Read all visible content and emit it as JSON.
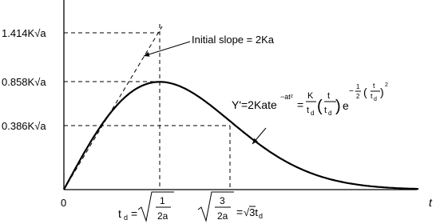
{
  "y_labels": [
    "1.414K√a",
    "0.858K√a",
    "0.386K√a"
  ],
  "origin_label": "0",
  "axis_label": "t",
  "annotation": "Initial slope = 2Ka",
  "formula": [
    "Y'=2Kate",
    "−at²",
    "=",
    "K",
    "t",
    "d",
    "(",
    "t",
    "t",
    "d",
    ")",
    "e",
    "−",
    "1",
    "2",
    "(",
    "t",
    "t",
    "d",
    ")",
    "2"
  ],
  "td_def": [
    "t",
    "d",
    "=",
    "1",
    "2a"
  ],
  "sqrt3_def": [
    "3",
    "2a",
    "=",
    "√3t",
    "d"
  ]
}
